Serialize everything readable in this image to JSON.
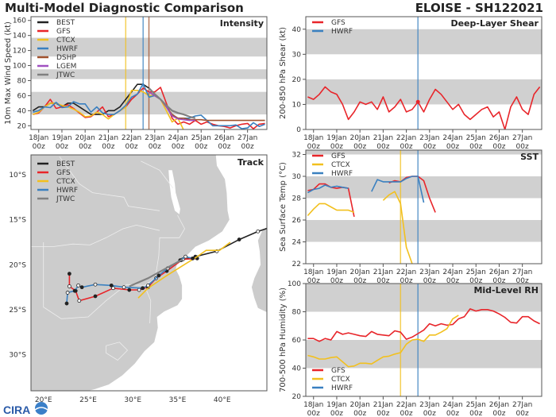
{
  "header": {
    "title": "Multi-Model Diagnostic Comparison",
    "storm": "ELOISE - SH122021"
  },
  "logo": {
    "text": "CIRA"
  },
  "colors": {
    "BEST": "#222222",
    "GFS": "#e8252a",
    "CTCX": "#f2c01e",
    "HWRF": "#3a80c0",
    "DSHP": "#a0522d",
    "LGEM": "#a050c0",
    "JTWC": "#808080",
    "band": "#d0d0d0",
    "land": "#cccccc"
  },
  "x_ticks": [
    "18Jan",
    "19Jan",
    "20Jan",
    "21Jan",
    "22Jan",
    "23Jan",
    "24Jan",
    "25Jan",
    "26Jan",
    "27Jan"
  ],
  "x_tick_hour": "00z",
  "times": [
    "17Jan 18z",
    "18Jan 00z",
    "18Jan 06z",
    "18Jan 12z",
    "18Jan 18z",
    "19Jan 00z",
    "19Jan 06z",
    "19Jan 12z",
    "19Jan 18z",
    "20Jan 00z",
    "20Jan 06z",
    "20Jan 12z",
    "20Jan 18z",
    "21Jan 00z",
    "21Jan 06z",
    "21Jan 12z",
    "21Jan 18z",
    "22Jan 00z",
    "22Jan 06z",
    "22Jan 12z",
    "22Jan 18z",
    "23Jan 00z",
    "23Jan 06z",
    "23Jan 12z",
    "23Jan 18z",
    "24Jan 00z",
    "24Jan 06z",
    "24Jan 12z",
    "24Jan 18z",
    "25Jan 00z",
    "25Jan 06z",
    "25Jan 12z",
    "25Jan 18z",
    "26Jan 00z",
    "26Jan 06z",
    "26Jan 12z",
    "26Jan 18z",
    "27Jan 00z",
    "27Jan 06z",
    "27Jan 12z",
    "27Jan 18z"
  ],
  "chart_data": [
    {
      "id": "intensity",
      "type": "line",
      "title": "Intensity",
      "ylabel": "10m Max Wind Speed (kt)",
      "ylim": [
        15,
        165
      ],
      "yticks": [
        20,
        40,
        60,
        80,
        100,
        120,
        140,
        160
      ],
      "xlim": [
        "17Jan 16z",
        "27Jan 20z"
      ],
      "bands": [
        [
          35,
          65
        ],
        [
          82,
          95
        ],
        [
          112,
          137
        ]
      ],
      "grid": false,
      "legend": "top-left",
      "vlines": [
        {
          "t": "21Jan 18z",
          "series": "CTCX"
        },
        {
          "t": "22Jan 12z",
          "series": "HWRF"
        },
        {
          "t": "22Jan 18z",
          "series": "DSHP"
        }
      ],
      "series": [
        {
          "name": "BEST",
          "values": [
            40,
            45,
            45,
            50,
            50,
            45,
            50,
            50,
            45,
            40,
            35,
            35,
            35,
            40,
            40,
            45,
            55,
            65,
            75,
            75,
            70
          ]
        },
        {
          "name": "GFS",
          "values": [
            35,
            37,
            45,
            55,
            43,
            45,
            48,
            43,
            37,
            31,
            32,
            38,
            45,
            32,
            35,
            40,
            45,
            55,
            62,
            70,
            65,
            65,
            71,
            50,
            30,
            22,
            25,
            22,
            27,
            22,
            25,
            22,
            20,
            19,
            17,
            20,
            22,
            23,
            16,
            22,
            23
          ]
        },
        {
          "name": "CTCX",
          "values": [
            35,
            38,
            45,
            50,
            50,
            47,
            45,
            42,
            38,
            32,
            33,
            38,
            35,
            29,
            35,
            40,
            45,
            67,
            67,
            65,
            60,
            60,
            55,
            40,
            25,
            30,
            14
          ]
        },
        {
          "name": "HWRF",
          "values": [
            38,
            40,
            45,
            44,
            51,
            44,
            45,
            52,
            49,
            49,
            38,
            45,
            37,
            35,
            35,
            40,
            47,
            58,
            62,
            76,
            58,
            60,
            55,
            45,
            33,
            30,
            30,
            30,
            33,
            34,
            27,
            20,
            20,
            20,
            20,
            21,
            16,
            17,
            24,
            19,
            22
          ]
        },
        {
          "name": "DSHP",
          "offset": 20,
          "values": [
            65,
            60,
            55,
            45,
            35,
            30,
            30,
            28,
            28,
            28,
            27,
            27,
            27,
            27,
            27,
            27,
            27,
            27,
            27,
            27,
            27
          ]
        },
        {
          "name": "LGEM",
          "offset": 20,
          "values": [
            65,
            60,
            55,
            45,
            33,
            29,
            28,
            27,
            27
          ]
        },
        {
          "name": "JTWC",
          "offset": 20,
          "values": [
            70,
            62,
            55,
            47,
            40,
            37,
            35,
            32,
            30
          ]
        }
      ]
    },
    {
      "id": "shear",
      "type": "line",
      "title": "Deep-Layer Shear",
      "ylabel": "200-850 hPa Shear (kt)",
      "ylim": [
        0,
        45
      ],
      "yticks": [
        0,
        10,
        20,
        30,
        40
      ],
      "xlim": [
        "17Jan 16z",
        "27Jan 20z"
      ],
      "bands": [
        [
          10,
          20
        ],
        [
          30,
          40
        ]
      ],
      "grid": false,
      "legend": "top-left",
      "vlines": [
        {
          "t": "22Jan 12z",
          "series": "HWRF"
        }
      ],
      "markers": [
        {
          "series": "GFS",
          "t": "22Jan 12z",
          "value": 11
        }
      ],
      "series": [
        {
          "name": "GFS",
          "values": [
            13,
            12,
            14,
            17,
            15,
            14,
            10,
            4,
            7,
            11,
            10,
            11,
            8,
            13,
            7,
            9,
            12,
            7,
            8,
            11,
            7,
            12,
            16,
            14,
            11,
            8,
            10,
            6,
            4,
            6,
            8,
            9,
            5,
            7,
            0,
            9,
            13,
            8,
            6,
            14,
            17
          ]
        },
        {
          "name": "HWRF",
          "values": []
        }
      ]
    },
    {
      "id": "sst",
      "type": "line",
      "title": "SST",
      "ylabel": "Sea Surface Temp (°C)",
      "ylim": [
        22,
        32.4
      ],
      "yticks": [
        22,
        24,
        26,
        28,
        30,
        32
      ],
      "xlim": [
        "17Jan 16z",
        "27Jan 20z"
      ],
      "bands": [
        [
          24,
          26
        ],
        [
          28,
          30
        ],
        [
          32,
          33
        ]
      ],
      "grid": false,
      "legend": "top-left",
      "vlines": [
        {
          "t": "21Jan 18z",
          "series": "CTCX"
        },
        {
          "t": "22Jan 12z",
          "series": "HWRF"
        }
      ],
      "series": [
        {
          "name": "GFS",
          "values": [
            28.7,
            28.8,
            29.3,
            29.3,
            29.0,
            28.9,
            29.0,
            28.9,
            26.3,
            null,
            null,
            null,
            null,
            null,
            29.4,
            29.6,
            29.5,
            29.9,
            30.0,
            30.0,
            29.6,
            28.0,
            26.7
          ]
        },
        {
          "name": "CTCX",
          "values": [
            26.4,
            27.0,
            27.5,
            27.5,
            27.2,
            26.9,
            26.9,
            26.9,
            26.7,
            null,
            null,
            null,
            null,
            27.8,
            28.3,
            28.6,
            27.5,
            23.5,
            22.0
          ]
        },
        {
          "name": "HWRF",
          "values": [
            28.5,
            28.8,
            28.9,
            29.2,
            29.0,
            29.1,
            29.0,
            28.9,
            null,
            null,
            null,
            28.6,
            29.7,
            29.5,
            29.5,
            29.5,
            29.5,
            29.8,
            30.0,
            30.0,
            27.6
          ]
        }
      ]
    },
    {
      "id": "rh",
      "type": "line",
      "title": "Mid-Level RH",
      "ylabel": "700-500 hPa Humidity (%)",
      "ylim": [
        20,
        100
      ],
      "yticks": [
        20,
        40,
        60,
        80,
        100
      ],
      "xlim": [
        "17Jan 16z",
        "27Jan 20z"
      ],
      "bands": [
        [
          40,
          60
        ],
        [
          80,
          100
        ]
      ],
      "grid": false,
      "legend": "bottom-left",
      "vlines": [
        {
          "t": "21Jan 18z",
          "series": "CTCX"
        },
        {
          "t": "22Jan 12z",
          "series": "HWRF"
        }
      ],
      "series": [
        {
          "name": "GFS",
          "values": [
            61,
            61,
            59,
            61,
            60,
            66,
            64,
            65,
            64,
            63,
            62.5,
            66,
            64,
            63.5,
            63,
            66.5,
            65.5,
            60.5,
            62,
            64.5,
            67,
            71.5,
            70,
            71.5,
            70.5,
            71,
            75,
            76.5,
            82,
            80.5,
            81.5,
            81.5,
            80.5,
            78.5,
            76,
            72.5,
            72,
            76.5,
            76.5,
            73.5,
            71.5
          ]
        },
        {
          "name": "CTCX",
          "values": [
            49,
            48,
            46.5,
            46.5,
            47.5,
            48,
            44.5,
            41,
            41.5,
            43.5,
            43.5,
            43,
            45.5,
            48,
            48.5,
            50,
            51,
            57,
            60,
            60.5,
            59,
            63.5,
            63.5,
            65.5,
            68,
            75,
            77.5
          ]
        },
        {
          "name": "HWRF",
          "values": []
        }
      ]
    },
    {
      "id": "track",
      "type": "map",
      "title": "Track",
      "lon_range": [
        18.6,
        45.0
      ],
      "lat_range": [
        -34.0,
        -7.8
      ],
      "lon_ticks": [
        {
          "v": 20,
          "label": "20°E"
        },
        {
          "v": 25,
          "label": "25°E"
        },
        {
          "v": 30,
          "label": "30°E"
        },
        {
          "v": 35,
          "label": "35°E"
        },
        {
          "v": 40,
          "label": "40°E"
        }
      ],
      "lat_ticks": [
        {
          "v": -10,
          "label": "10°S"
        },
        {
          "v": -15,
          "label": "15°S"
        },
        {
          "v": -20,
          "label": "20°S"
        },
        {
          "v": -25,
          "label": "25°S"
        },
        {
          "v": -30,
          "label": "30°S"
        }
      ],
      "legend": "top-left",
      "series": [
        {
          "name": "BEST",
          "points": [
            [
              45.5,
              -15.8
            ],
            [
              44.0,
              -16.3
            ],
            [
              41.9,
              -17.2
            ],
            [
              39.4,
              -18.5
            ],
            [
              37.0,
              -19.1
            ],
            [
              35.4,
              -19.5
            ]
          ]
        },
        {
          "name": "GFS",
          "points": [
            [
              37.2,
              -19.3
            ],
            [
              35.6,
              -19.4
            ],
            [
              33.8,
              -20.7
            ],
            [
              32.6,
              -21.5
            ],
            [
              31.7,
              -22.5
            ],
            [
              30.7,
              -22.8
            ],
            [
              29.6,
              -22.8
            ],
            [
              27.8,
              -22.6
            ],
            [
              25.8,
              -23.5
            ],
            [
              24.0,
              -24.0
            ],
            [
              23.6,
              -22.9
            ],
            [
              22.9,
              -22.4
            ],
            [
              22.9,
              -21.0
            ]
          ]
        },
        {
          "name": "CTCX",
          "points": [
            [
              40.9,
              -17.5
            ],
            [
              39.7,
              -18.4
            ],
            [
              38.2,
              -18.4
            ],
            [
              37.2,
              -19.1
            ],
            [
              35.9,
              -19.9
            ],
            [
              33.8,
              -21.2
            ],
            [
              31.7,
              -22.6
            ],
            [
              30.6,
              -23.7
            ]
          ]
        },
        {
          "name": "HWRF",
          "points": [
            [
              36.7,
              -19.3
            ],
            [
              35.9,
              -19.1
            ],
            [
              35.3,
              -19.5
            ],
            [
              33.9,
              -20.4
            ],
            [
              32.9,
              -21.2
            ],
            [
              31.7,
              -22.3
            ],
            [
              31.1,
              -22.6
            ],
            [
              29.0,
              -22.5
            ],
            [
              27.6,
              -22.3
            ],
            [
              25.8,
              -22.2
            ],
            [
              24.3,
              -22.5
            ],
            [
              23.9,
              -22.3
            ],
            [
              23.5,
              -22.9
            ],
            [
              22.7,
              -23.1
            ],
            [
              22.6,
              -24.3
            ]
          ]
        },
        {
          "name": "JTWC",
          "points": [
            [
              35.6,
              -19.4
            ],
            [
              33.9,
              -20.3
            ],
            [
              31.7,
              -21.5
            ],
            [
              29.6,
              -22.4
            ]
          ]
        }
      ]
    }
  ]
}
